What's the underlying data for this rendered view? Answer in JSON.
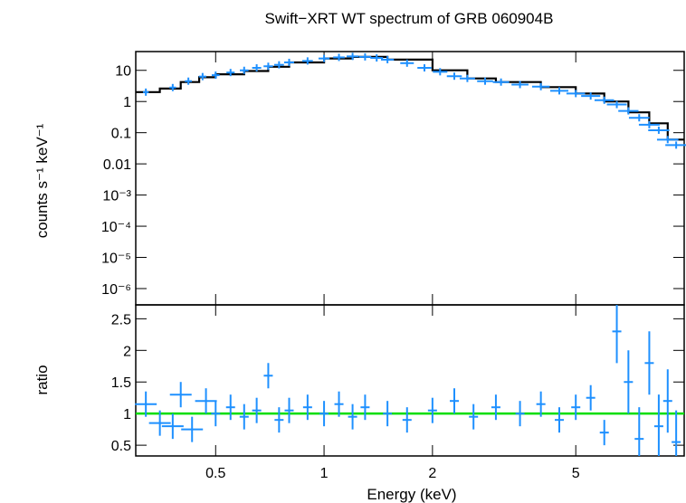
{
  "chart_data": {
    "type": "scatter",
    "title": "Swift−XRT WT spectrum of GRB 060904B",
    "xlabel": "Energy (keV)",
    "xscale": "log",
    "xlim": [
      0.3,
      10
    ],
    "x_ticks": [
      {
        "value": 0.5,
        "label": "0.5"
      },
      {
        "value": 1,
        "label": "1"
      },
      {
        "value": 2,
        "label": "2"
      },
      {
        "value": 5,
        "label": "5"
      }
    ],
    "colors": {
      "data": "#1e90ff",
      "model": "#000000",
      "unity": "#00dd00"
    },
    "panels": [
      {
        "name": "spectrum",
        "ylabel": "counts s⁻¹ keV⁻¹",
        "yscale": "log",
        "ylim": [
          3e-07,
          40
        ],
        "y_ticks": [
          {
            "value": 10,
            "label": "10"
          },
          {
            "value": 1,
            "label": "1"
          },
          {
            "value": 0.1,
            "label": "0.1"
          },
          {
            "value": 0.01,
            "label": "0.01"
          },
          {
            "value": 0.001,
            "label": "10⁻³"
          },
          {
            "value": 0.0001,
            "label": "10⁻⁴"
          },
          {
            "value": 1e-05,
            "label": "10⁻⁵"
          },
          {
            "value": 1e-06,
            "label": "10⁻⁶"
          }
        ],
        "model": {
          "x": [
            0.3,
            0.35,
            0.4,
            0.45,
            0.5,
            0.6,
            0.7,
            0.8,
            1.0,
            1.2,
            1.5,
            2.0,
            2.5,
            3.0,
            4.0,
            5.0,
            6.0,
            7.0,
            8.0,
            9.0,
            10.0
          ],
          "y": [
            2.0,
            2.6,
            4.2,
            6.0,
            7.5,
            9.5,
            13.0,
            18.0,
            24.0,
            27.0,
            22.0,
            10.0,
            5.5,
            4.2,
            2.9,
            1.8,
            1.0,
            0.45,
            0.2,
            0.06,
            0.03
          ]
        },
        "data": {
          "x": [
            0.32,
            0.38,
            0.42,
            0.46,
            0.5,
            0.55,
            0.6,
            0.65,
            0.7,
            0.75,
            0.8,
            0.9,
            1.0,
            1.1,
            1.2,
            1.3,
            1.4,
            1.5,
            1.7,
            1.9,
            2.1,
            2.3,
            2.5,
            2.8,
            3.1,
            3.5,
            4.0,
            4.5,
            5.0,
            5.5,
            6.0,
            6.5,
            7.0,
            7.5,
            8.0,
            8.5,
            9.0,
            9.5
          ],
          "y": [
            2.0,
            2.8,
            4.5,
            6.3,
            7.0,
            8.5,
            10.0,
            12.0,
            13.5,
            15.0,
            18.0,
            20.0,
            24.0,
            26.0,
            28.0,
            27.0,
            25.0,
            22.0,
            17.0,
            12.0,
            9.0,
            6.5,
            5.5,
            4.5,
            4.2,
            3.5,
            3.0,
            2.2,
            1.8,
            1.5,
            1.1,
            0.8,
            0.5,
            0.3,
            0.18,
            0.12,
            0.06,
            0.04
          ]
        }
      },
      {
        "name": "ratio",
        "ylabel": "ratio",
        "yscale": "linear",
        "ylim": [
          0.33,
          2.72
        ],
        "y_ticks": [
          {
            "value": 0.5,
            "label": "0.5"
          },
          {
            "value": 1,
            "label": "1"
          },
          {
            "value": 1.5,
            "label": "1.5"
          },
          {
            "value": 2,
            "label": "2"
          },
          {
            "value": 2.5,
            "label": "2.5"
          }
        ],
        "unity_line": 1,
        "data": {
          "x": [
            0.32,
            0.35,
            0.38,
            0.4,
            0.43,
            0.47,
            0.5,
            0.55,
            0.6,
            0.65,
            0.7,
            0.75,
            0.8,
            0.9,
            1.0,
            1.1,
            1.2,
            1.3,
            1.5,
            1.7,
            2.0,
            2.3,
            2.6,
            3.0,
            3.5,
            4.0,
            4.5,
            5.0,
            5.5,
            6.0,
            6.5,
            7.0,
            7.5,
            8.0,
            8.5,
            9.0,
            9.5
          ],
          "y": [
            1.15,
            0.85,
            0.8,
            1.3,
            0.75,
            1.2,
            1.0,
            1.1,
            0.95,
            1.05,
            1.6,
            0.9,
            1.05,
            1.1,
            1.0,
            1.15,
            0.95,
            1.1,
            1.0,
            0.9,
            1.05,
            1.2,
            0.95,
            1.1,
            1.0,
            1.15,
            0.9,
            1.1,
            1.25,
            0.7,
            2.3,
            1.5,
            0.6,
            1.8,
            0.8,
            1.2,
            0.55
          ]
        }
      }
    ]
  }
}
